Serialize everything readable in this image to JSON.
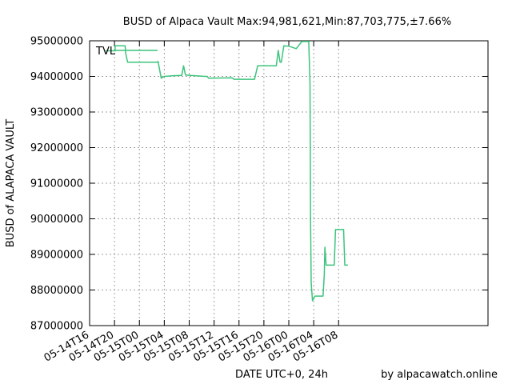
{
  "chart_data": {
    "type": "line",
    "title": "BUSD of Alpaca Vault Max:94,981,621,Min:87,703,775,±7.66%",
    "xlabel": "DATE UTC+0, 24h",
    "ylabel": "BUSD of ALAPACA VAULT",
    "credit": "by alpacawatch.online",
    "legend": {
      "position": "top-left",
      "label": "TVL"
    },
    "grid": true,
    "line_color": "#3cc47c",
    "x_unit": "hours (2021-05-14T16 = 0)",
    "xlim": [
      0,
      64
    ],
    "ylim": [
      87000000,
      95000000
    ],
    "x_ticks": [
      {
        "x": 0,
        "label": "05-14T16"
      },
      {
        "x": 4,
        "label": "05-14T20"
      },
      {
        "x": 8,
        "label": "05-15T00"
      },
      {
        "x": 12,
        "label": "05-15T04"
      },
      {
        "x": 16,
        "label": "05-15T08"
      },
      {
        "x": 20,
        "label": "05-15T12"
      },
      {
        "x": 24,
        "label": "05-15T16"
      },
      {
        "x": 28,
        "label": "05-15T20"
      },
      {
        "x": 32,
        "label": "05-16T00"
      },
      {
        "x": 36,
        "label": "05-16T04"
      },
      {
        "x": 40,
        "label": "05-16T08"
      }
    ],
    "y_ticks": [
      {
        "y": 87000000,
        "label": "87000000"
      },
      {
        "y": 88000000,
        "label": "88000000"
      },
      {
        "y": 89000000,
        "label": "89000000"
      },
      {
        "y": 90000000,
        "label": "90000000"
      },
      {
        "y": 91000000,
        "label": "91000000"
      },
      {
        "y": 92000000,
        "label": "92000000"
      },
      {
        "y": 93000000,
        "label": "93000000"
      },
      {
        "y": 94000000,
        "label": "94000000"
      },
      {
        "y": 95000000,
        "label": "95000000"
      }
    ],
    "series": [
      {
        "points": [
          [
            2.6,
            94720000
          ],
          [
            4.1,
            94720000
          ],
          [
            4.1,
            94860000
          ],
          [
            5.7,
            94860000
          ],
          [
            5.8,
            94650000
          ],
          [
            6.1,
            94400000
          ],
          [
            10.9,
            94400000
          ],
          [
            11.0,
            94420000
          ],
          [
            11.5,
            93950000
          ],
          [
            12.0,
            94000000
          ],
          [
            13.5,
            94020000
          ],
          [
            14.8,
            94030000
          ],
          [
            15.1,
            94300000
          ],
          [
            15.4,
            94040000
          ],
          [
            16.8,
            94020000
          ],
          [
            18.5,
            94000000
          ],
          [
            18.9,
            94000000
          ],
          [
            19.1,
            93950000
          ],
          [
            22.9,
            93960000
          ],
          [
            23.2,
            93920000
          ],
          [
            26.5,
            93920000
          ],
          [
            27.0,
            94300000
          ],
          [
            30.0,
            94300000
          ],
          [
            30.3,
            94730000
          ],
          [
            30.6,
            94400000
          ],
          [
            30.8,
            94400000
          ],
          [
            31.2,
            94860000
          ],
          [
            32.0,
            94850000
          ],
          [
            33.2,
            94780000
          ],
          [
            33.5,
            94850000
          ],
          [
            34.1,
            94980000
          ],
          [
            34.3,
            94980000
          ],
          [
            35.2,
            94980000
          ],
          [
            35.4,
            93800000
          ],
          [
            35.5,
            90000000
          ],
          [
            35.6,
            88200000
          ],
          [
            35.8,
            87700000
          ],
          [
            36.2,
            87830000
          ],
          [
            37.5,
            87830000
          ],
          [
            37.7,
            88450000
          ],
          [
            37.8,
            89200000
          ],
          [
            38.0,
            88700000
          ],
          [
            39.3,
            88700000
          ],
          [
            39.5,
            89700000
          ],
          [
            40.8,
            89700000
          ],
          [
            41.0,
            88700000
          ],
          [
            41.5,
            88700000
          ]
        ]
      }
    ]
  }
}
